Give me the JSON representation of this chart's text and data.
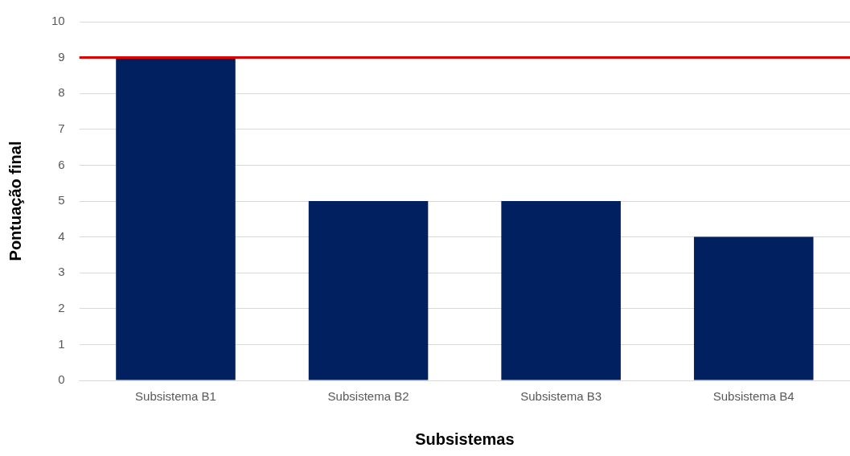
{
  "chart_data": {
    "type": "bar",
    "xlabel": "Subsistemas",
    "ylabel": "Pontuação final",
    "categories": [
      "Subsistema B1",
      "Subsistema B2",
      "Subsistema B3",
      "Subsistema B4"
    ],
    "values": [
      9,
      5,
      5,
      4
    ],
    "color": "#002060",
    "ylim": [
      0,
      10
    ],
    "yticks": [
      0,
      1,
      2,
      3,
      4,
      5,
      6,
      7,
      8,
      9,
      10
    ],
    "grid": "y",
    "ref_lines": [
      {
        "axis": "y",
        "value": 9,
        "color": "#e00000"
      }
    ]
  }
}
